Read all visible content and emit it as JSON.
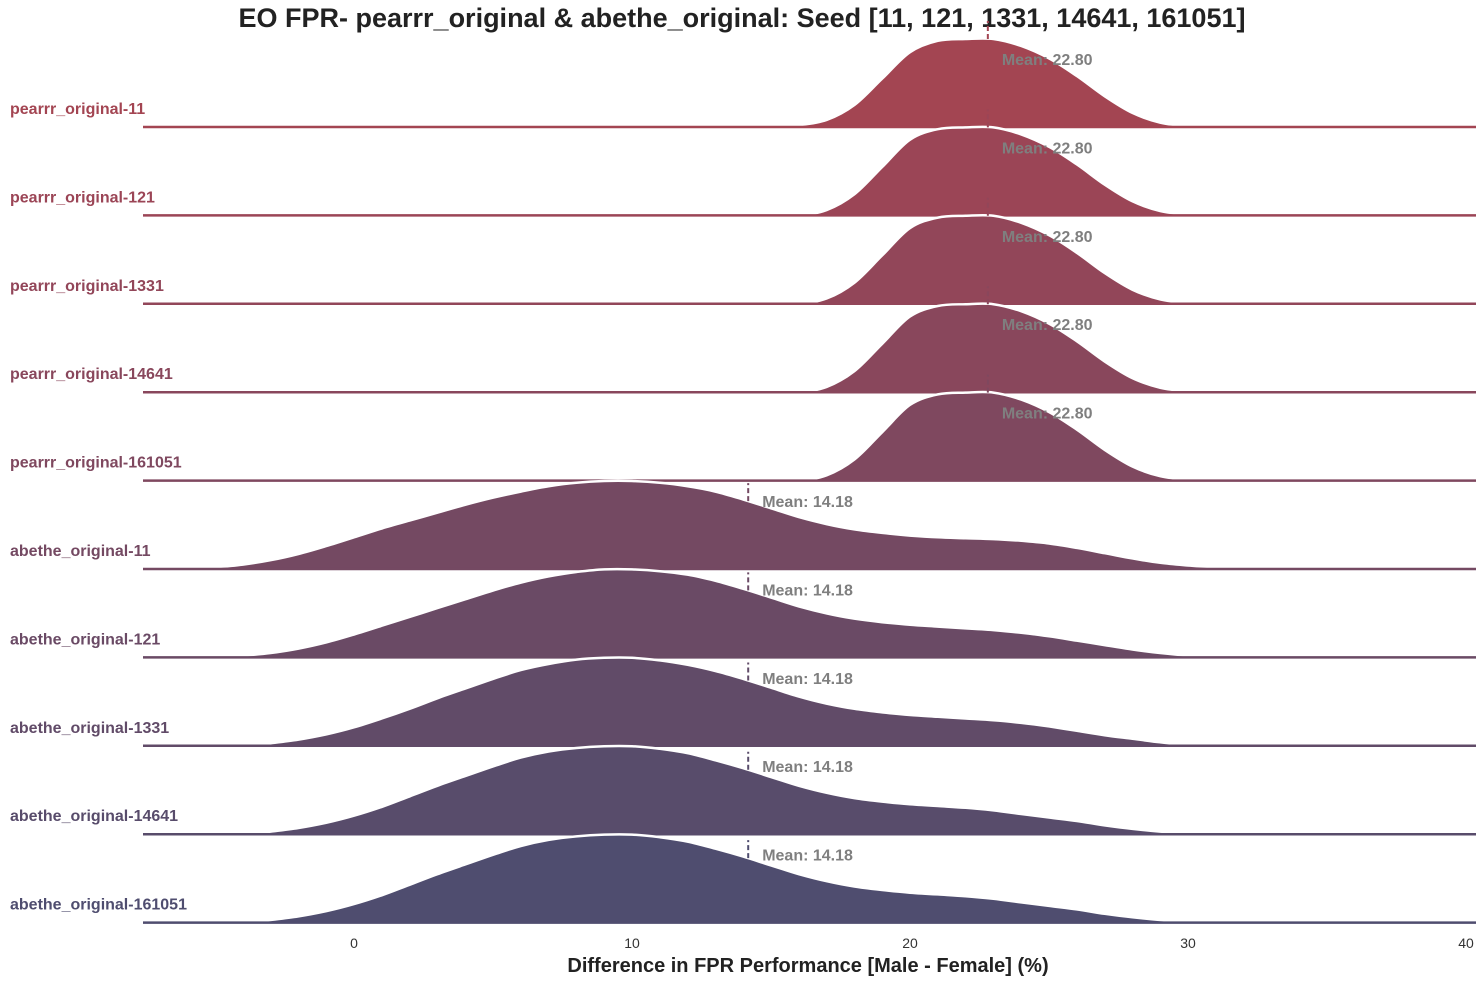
{
  "chart_data": {
    "type": "ridgeline",
    "title": "EO FPR- pearrr_original & abethe_original: Seed [11, 121, 1331, 14641, 161051]",
    "xlabel": "Difference in FPR Performance [Male - Female] (%)",
    "ylabel": "",
    "xlim": [
      -7,
      40
    ],
    "xticks": [
      "0",
      "10",
      "20",
      "30",
      "40"
    ],
    "xtick_values": [
      0,
      10,
      20,
      30,
      40
    ],
    "grid": false,
    "legend": "none",
    "x": [
      -7,
      -6,
      -5,
      -4,
      -3,
      -2,
      -1,
      0,
      1,
      2,
      3,
      4,
      5,
      6,
      7,
      8,
      9,
      10,
      11,
      12,
      13,
      14,
      15,
      16,
      17,
      18,
      19,
      20,
      21,
      22,
      23,
      24,
      25,
      26,
      27,
      28,
      29,
      30,
      31,
      32,
      33,
      34,
      35,
      36,
      37,
      38,
      39,
      40
    ],
    "series": [
      {
        "name": "pearrr_original-11",
        "color": "#a34552",
        "mean": 22.8,
        "mean_label": "Mean: 22.80",
        "density": [
          0,
          0,
          0,
          0,
          0,
          0,
          0,
          0,
          0,
          0,
          0,
          0,
          0,
          0,
          0,
          0,
          0,
          0,
          0,
          0,
          0,
          0,
          0,
          0.02,
          0.08,
          0.25,
          0.55,
          0.85,
          0.98,
          1.0,
          1.0,
          0.92,
          0.78,
          0.58,
          0.35,
          0.16,
          0.05,
          0.01,
          0,
          0,
          0,
          0,
          0,
          0,
          0,
          0,
          0,
          0
        ]
      },
      {
        "name": "pearrr_original-121",
        "color": "#9b4556",
        "mean": 22.8,
        "mean_label": "Mean: 22.80",
        "density": [
          0,
          0,
          0,
          0,
          0,
          0,
          0,
          0,
          0,
          0,
          0,
          0,
          0,
          0,
          0,
          0,
          0,
          0,
          0,
          0,
          0,
          0,
          0,
          0,
          0.06,
          0.24,
          0.55,
          0.86,
          0.98,
          1.0,
          1.0,
          0.92,
          0.78,
          0.58,
          0.35,
          0.16,
          0.05,
          0.01,
          0,
          0,
          0,
          0,
          0,
          0,
          0,
          0,
          0,
          0
        ]
      },
      {
        "name": "pearrr_original-1331",
        "color": "#924659",
        "mean": 22.8,
        "mean_label": "Mean: 22.80",
        "density": [
          0,
          0,
          0,
          0,
          0,
          0,
          0,
          0,
          0,
          0,
          0,
          0,
          0,
          0,
          0,
          0,
          0,
          0,
          0,
          0,
          0,
          0,
          0,
          0,
          0.06,
          0.24,
          0.55,
          0.86,
          0.98,
          1.0,
          1.0,
          0.92,
          0.78,
          0.58,
          0.35,
          0.16,
          0.05,
          0.01,
          0,
          0,
          0,
          0,
          0,
          0,
          0,
          0,
          0,
          0
        ]
      },
      {
        "name": "pearrr_original-14641",
        "color": "#89475c",
        "mean": 22.8,
        "mean_label": "Mean: 22.80",
        "density": [
          0,
          0,
          0,
          0,
          0,
          0,
          0,
          0,
          0,
          0,
          0,
          0,
          0,
          0,
          0,
          0,
          0,
          0,
          0,
          0,
          0,
          0,
          0,
          0,
          0.06,
          0.24,
          0.55,
          0.86,
          0.98,
          1.0,
          1.0,
          0.92,
          0.78,
          0.58,
          0.35,
          0.16,
          0.05,
          0.01,
          0,
          0,
          0,
          0,
          0,
          0,
          0,
          0,
          0,
          0
        ]
      },
      {
        "name": "pearrr_original-161051",
        "color": "#7f485f",
        "mean": 22.8,
        "mean_label": "Mean: 22.80",
        "density": [
          0,
          0,
          0,
          0,
          0,
          0,
          0,
          0,
          0,
          0,
          0,
          0,
          0,
          0,
          0,
          0,
          0,
          0,
          0,
          0,
          0,
          0,
          0,
          0,
          0.06,
          0.24,
          0.55,
          0.86,
          0.98,
          1.0,
          1.0,
          0.92,
          0.78,
          0.58,
          0.35,
          0.16,
          0.05,
          0.01,
          0,
          0,
          0,
          0,
          0,
          0,
          0,
          0,
          0,
          0
        ]
      },
      {
        "name": "abethe_original-11",
        "color": "#744962",
        "mean": 14.18,
        "mean_label": "Mean: 14.18",
        "density": [
          0,
          0,
          0.02,
          0.05,
          0.1,
          0.17,
          0.26,
          0.36,
          0.46,
          0.55,
          0.64,
          0.73,
          0.81,
          0.88,
          0.94,
          0.98,
          1.0,
          1.0,
          0.98,
          0.94,
          0.88,
          0.79,
          0.69,
          0.59,
          0.51,
          0.45,
          0.41,
          0.38,
          0.36,
          0.35,
          0.34,
          0.32,
          0.29,
          0.24,
          0.18,
          0.12,
          0.07,
          0.04,
          0.02,
          0,
          0,
          0,
          0,
          0,
          0,
          0,
          0,
          0
        ]
      },
      {
        "name": "abethe_original-121",
        "color": "#6a4a65",
        "mean": 14.18,
        "mean_label": "Mean: 14.18",
        "density": [
          0,
          0,
          0,
          0.02,
          0.05,
          0.1,
          0.17,
          0.26,
          0.36,
          0.46,
          0.56,
          0.66,
          0.76,
          0.85,
          0.92,
          0.97,
          1.0,
          1.0,
          0.98,
          0.94,
          0.87,
          0.78,
          0.68,
          0.58,
          0.5,
          0.44,
          0.4,
          0.37,
          0.35,
          0.33,
          0.31,
          0.28,
          0.24,
          0.19,
          0.14,
          0.09,
          0.05,
          0.02,
          0,
          0,
          0,
          0,
          0,
          0,
          0,
          0,
          0,
          0
        ]
      },
      {
        "name": "abethe_original-1331",
        "color": "#614b68",
        "mean": 14.18,
        "mean_label": "Mean: 14.18",
        "density": [
          0,
          0,
          0,
          0,
          0.03,
          0.07,
          0.13,
          0.21,
          0.31,
          0.42,
          0.54,
          0.65,
          0.76,
          0.86,
          0.93,
          0.98,
          1.0,
          1.0,
          0.97,
          0.92,
          0.85,
          0.76,
          0.66,
          0.56,
          0.48,
          0.42,
          0.38,
          0.35,
          0.33,
          0.31,
          0.29,
          0.26,
          0.22,
          0.17,
          0.12,
          0.08,
          0.04,
          0.01,
          0,
          0,
          0,
          0,
          0,
          0,
          0,
          0,
          0,
          0
        ]
      },
      {
        "name": "abethe_original-14641",
        "color": "#584c6b",
        "mean": 14.18,
        "mean_label": "Mean: 14.18",
        "density": [
          0,
          0,
          0,
          0,
          0.03,
          0.07,
          0.13,
          0.21,
          0.31,
          0.43,
          0.55,
          0.66,
          0.77,
          0.87,
          0.94,
          0.98,
          1.0,
          1.0,
          0.97,
          0.92,
          0.84,
          0.75,
          0.65,
          0.55,
          0.47,
          0.41,
          0.37,
          0.34,
          0.32,
          0.3,
          0.27,
          0.23,
          0.19,
          0.15,
          0.1,
          0.06,
          0.03,
          0.01,
          0,
          0,
          0,
          0,
          0,
          0,
          0,
          0,
          0,
          0
        ]
      },
      {
        "name": "abethe_original-161051",
        "color": "#4f4d6f",
        "mean": 14.18,
        "mean_label": "Mean: 14.18",
        "density": [
          0,
          0,
          0,
          0,
          0.03,
          0.07,
          0.13,
          0.21,
          0.31,
          0.43,
          0.55,
          0.66,
          0.77,
          0.87,
          0.94,
          0.98,
          1.0,
          1.0,
          0.97,
          0.92,
          0.84,
          0.75,
          0.65,
          0.55,
          0.47,
          0.41,
          0.37,
          0.34,
          0.32,
          0.3,
          0.27,
          0.23,
          0.19,
          0.15,
          0.1,
          0.06,
          0.03,
          0.01,
          0,
          0,
          0,
          0,
          0,
          0,
          0,
          0,
          0,
          0
        ]
      }
    ]
  }
}
